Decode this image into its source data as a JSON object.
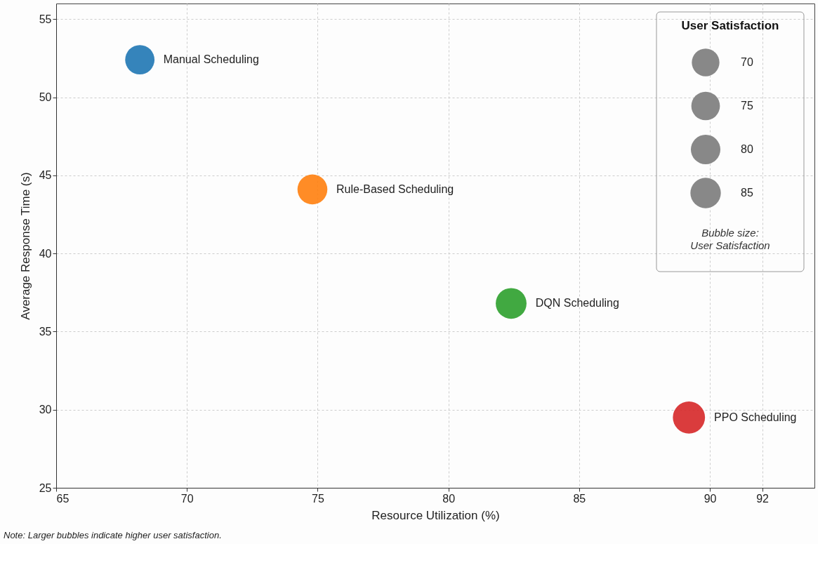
{
  "chart_data": {
    "type": "bubble",
    "xlabel": "Resource Utilization (%)",
    "ylabel": "Average Response Time (s)",
    "legend_title": "User Satisfaction",
    "series": [
      {
        "name": "Manual Scheduling",
        "color": "#1f77b4",
        "x": [
          68.2
        ],
        "values": [
          52.4
        ],
        "sizes": [
          79
        ]
      },
      {
        "name": "Rule-Based Scheduling",
        "color": "#ff7f0e",
        "x": [
          74.8
        ],
        "values": [
          44.1
        ],
        "sizes": [
          82
        ]
      },
      {
        "name": "DQN Scheduling",
        "color": "#2ca02c",
        "x": [
          82.4
        ],
        "values": [
          36.8
        ],
        "sizes": [
          87
        ]
      },
      {
        "name": "PPO Scheduling",
        "color": "#d62728",
        "x": [
          89.2
        ],
        "values": [
          29.5
        ],
        "sizes": [
          95
        ]
      }
    ],
    "size_legend": [
      70,
      75,
      80,
      85
    ],
    "xlim": [
      65,
      94
    ],
    "xticks": [
      65,
      70,
      75,
      80,
      85,
      90,
      92
    ],
    "ylim": [
      25,
      56
    ],
    "yticks": [
      25,
      30,
      35,
      40,
      45,
      50,
      55
    ],
    "grid": true,
    "legend": "top right",
    "annotations": [
      "Bubble size:\nUser Satisfaction",
      "Note: Larger bubbles indicate higher user satisfaction."
    ]
  }
}
